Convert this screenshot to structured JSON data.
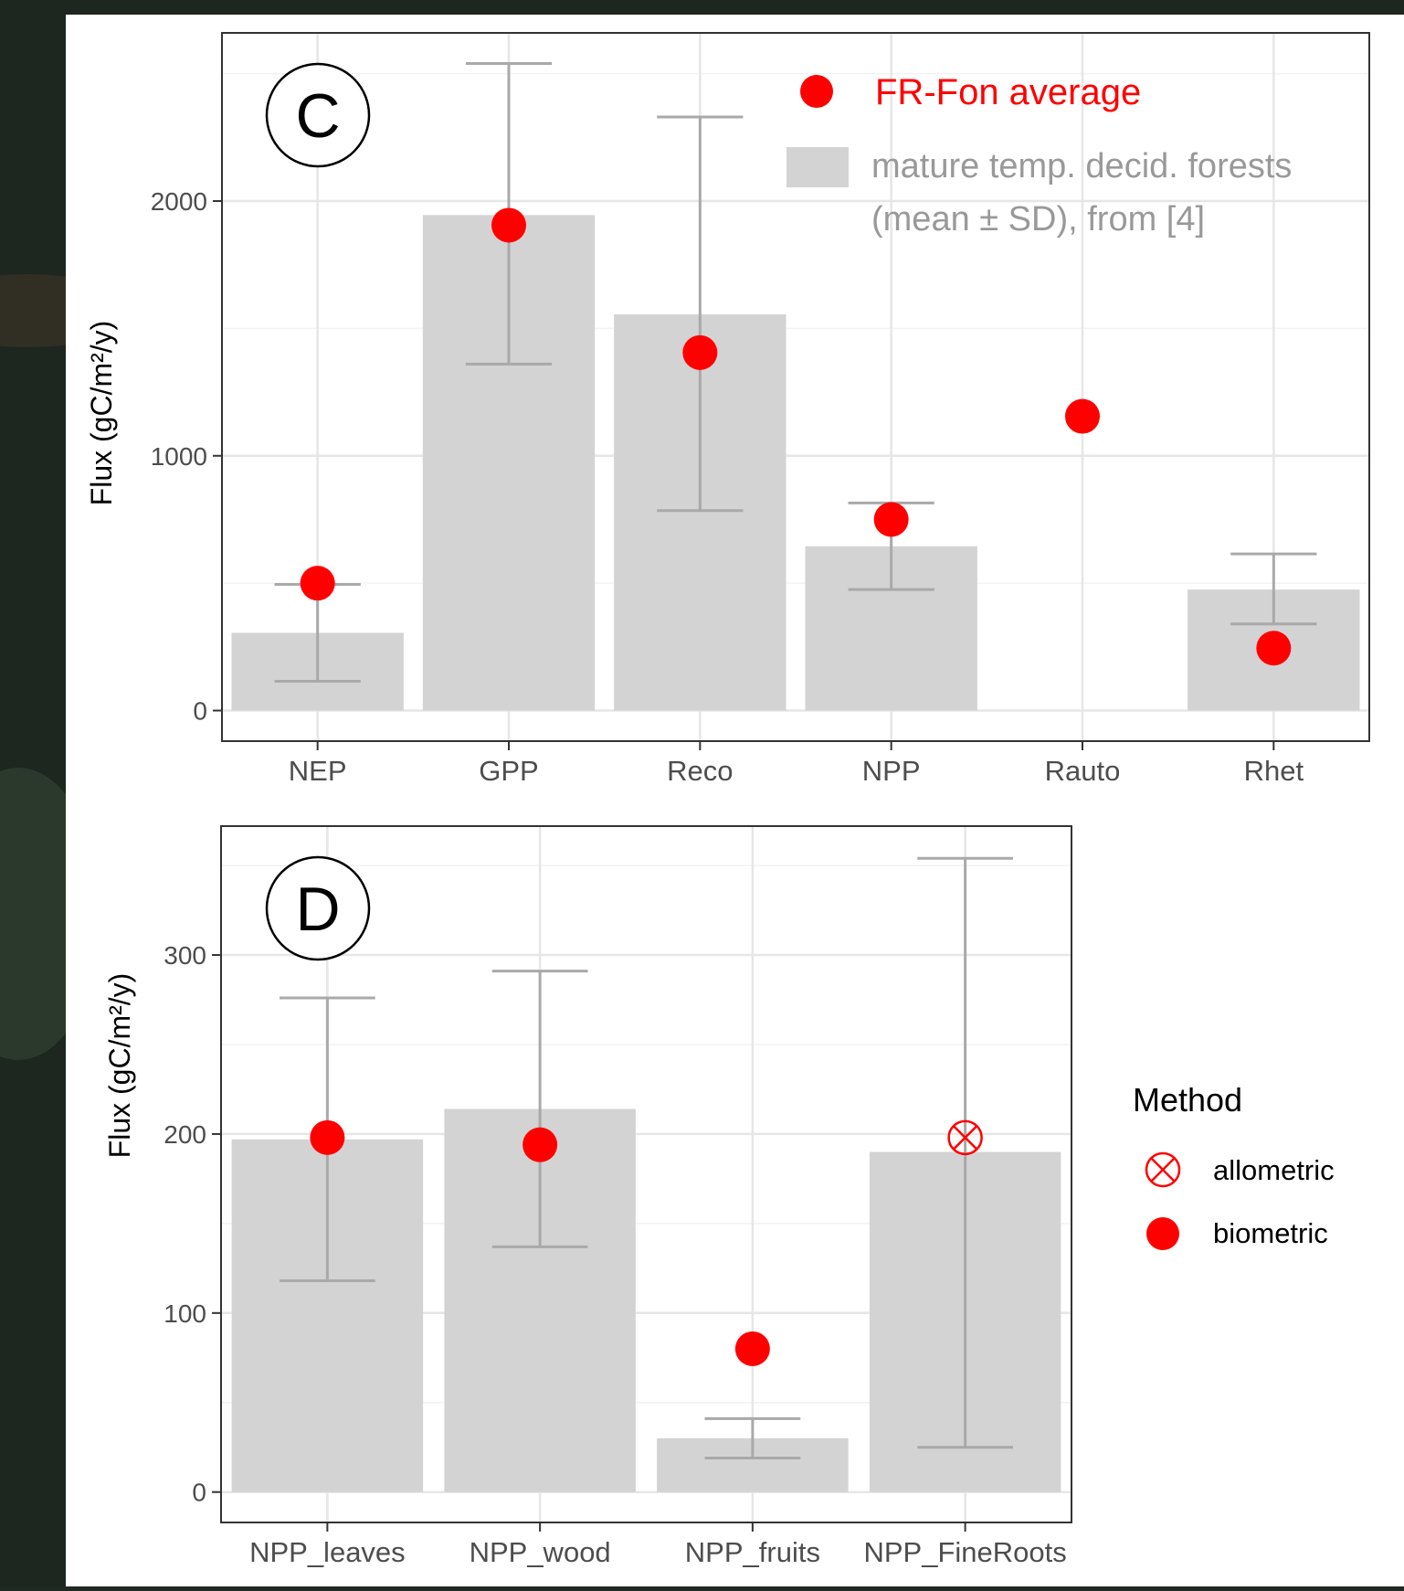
{
  "colors": {
    "point": "#ff0000",
    "bar": "#d3d3d3",
    "errorbar": "#a9a9a9",
    "grid_major": "#e6e6e6",
    "grid_minor": "#f2f2f2",
    "axis_text": "#4d4d4d",
    "background_photo": "#1f2a22"
  },
  "chart_data": [
    {
      "panel_label": "C",
      "type": "bar",
      "ylabel": "Flux (gC/m²/y)",
      "ylim": [
        -120,
        2660
      ],
      "yticks": [
        0,
        1000,
        2000
      ],
      "grid": true,
      "legend_position": "top-right",
      "legend": [
        {
          "label": "FR-Fon average",
          "marker": "point"
        },
        {
          "label": "mature temp. decid. forests",
          "label2": "(mean ± SD), from [4]",
          "marker": "bar"
        }
      ],
      "categories": [
        "NEP",
        "GPP",
        "Reco",
        "NPP",
        "Rauto",
        "Rhet"
      ],
      "series": [
        {
          "kind": "bar",
          "values": [
            305,
            1945,
            1555,
            645,
            null,
            475
          ]
        },
        {
          "kind": "errorbar",
          "low": [
            115,
            1360,
            785,
            475,
            null,
            340
          ],
          "high": [
            495,
            2540,
            2330,
            815,
            null,
            615
          ]
        },
        {
          "kind": "point",
          "values": [
            500,
            1905,
            1405,
            750,
            1155,
            245
          ]
        }
      ]
    },
    {
      "panel_label": "D",
      "type": "bar",
      "ylabel": "Flux (gC/m²/y)",
      "ylim": [
        -17,
        372
      ],
      "yticks": [
        0,
        100,
        200,
        300
      ],
      "grid": true,
      "legend_position": "right",
      "legend_title": "Method",
      "legend": [
        {
          "label": "allometric",
          "marker": "circle-x"
        },
        {
          "label": "biometric",
          "marker": "point"
        }
      ],
      "categories": [
        "NPP_leaves",
        "NPP_wood",
        "NPP_fruits",
        "NPP_FineRoots"
      ],
      "series": [
        {
          "kind": "bar",
          "values": [
            197,
            214,
            30,
            190
          ]
        },
        {
          "kind": "errorbar",
          "low": [
            118,
            137,
            19,
            25
          ],
          "high": [
            276,
            291,
            41,
            354
          ]
        },
        {
          "kind": "point",
          "values": [
            198,
            194,
            80,
            198
          ],
          "methods": [
            "biometric",
            "biometric",
            "biometric",
            "allometric"
          ]
        }
      ]
    }
  ]
}
